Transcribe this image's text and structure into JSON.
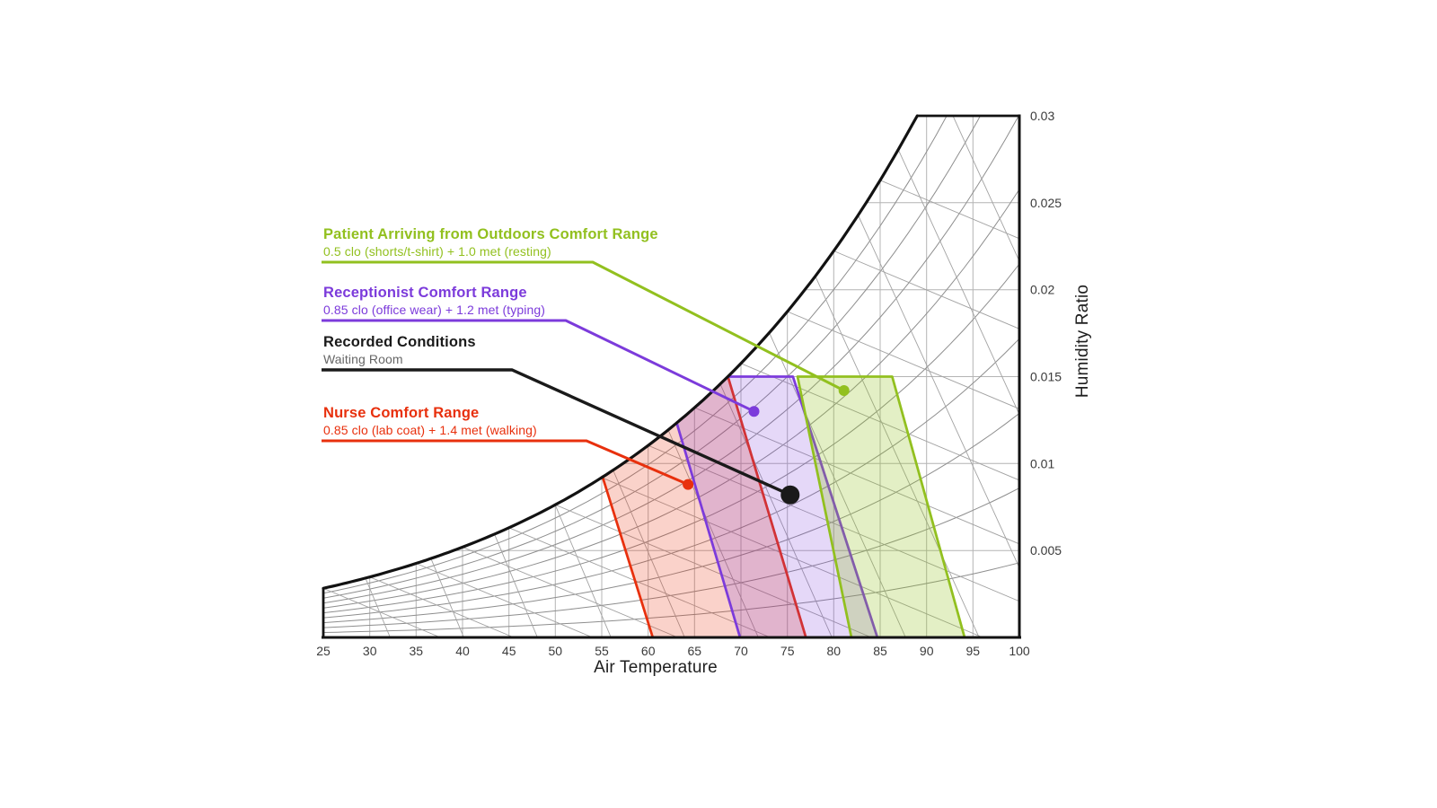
{
  "chart_data": {
    "type": "psychrometric_comfort_chart",
    "xlabel": "Air Temperature",
    "ylabel": "Humidity Ratio",
    "x_range": [
      25,
      100
    ],
    "y_range": [
      0,
      0.03
    ],
    "x_ticks": [
      25,
      30,
      35,
      40,
      45,
      50,
      55,
      60,
      65,
      70,
      75,
      80,
      85,
      90,
      95,
      100
    ],
    "y_ticks": [
      0.005,
      0.01,
      0.015,
      0.02,
      0.025,
      0.03
    ],
    "grid": {
      "vertical_T_step": 5,
      "horizontal_W_step": 0.005,
      "rh_percent": [
        10,
        20,
        30,
        40,
        50,
        60,
        70,
        80,
        90
      ],
      "wet_bulb_F": {
        "start": 25,
        "end": 85,
        "step": 5
      },
      "volume_ft3lb": {
        "start": 11.8,
        "end": 14.8,
        "step": 0.2
      }
    },
    "series": [
      {
        "id": "patient_zone",
        "kind": "zone",
        "z_order": 3,
        "title": "Patient Arriving from Outdoors Comfort Range",
        "subtitle": "0.5 clo (shorts/t-shirt) + 1.0 met (resting)",
        "color": "#92C01F",
        "fill_opacity": 0.26,
        "bottom_T": [
          81.9,
          94.1
        ],
        "top_T": [
          76.1,
          86.3
        ],
        "top_W": 0.015,
        "marker": {
          "T": 81.1,
          "W": 0.0142
        }
      },
      {
        "id": "receptionist_zone",
        "kind": "zone",
        "z_order": 2,
        "title": "Receptionist Comfort Range",
        "subtitle": "0.85 clo (office wear) + 1.2 met (typing)",
        "color": "#7C3BDB",
        "fill_opacity": 0.2,
        "bottom_T": [
          69.9,
          84.7
        ],
        "top_T": [
          61.6,
          75.6
        ],
        "top_W": 0.015,
        "marker": {
          "T": 71.4,
          "W": 0.013
        }
      },
      {
        "id": "recorded_point",
        "kind": "point",
        "title": "Recorded Conditions",
        "subtitle": "Waiting Room",
        "color": "#1A1A1A",
        "subtitle_color": "#666666",
        "marker": {
          "T": 75.3,
          "W": 0.0082
        }
      },
      {
        "id": "nurse_zone",
        "kind": "zone",
        "z_order": 1,
        "title": "Nurse Comfort Range",
        "subtitle": "0.85 clo (lab coat) + 1.4 met (walking)",
        "color": "#E8300D",
        "fill_opacity": 0.22,
        "bottom_T": [
          60.5,
          77.0
        ],
        "top_T": [
          51.7,
          68.5
        ],
        "top_W": 0.015,
        "marker": {
          "T": 64.3,
          "W": 0.0088
        }
      }
    ]
  }
}
